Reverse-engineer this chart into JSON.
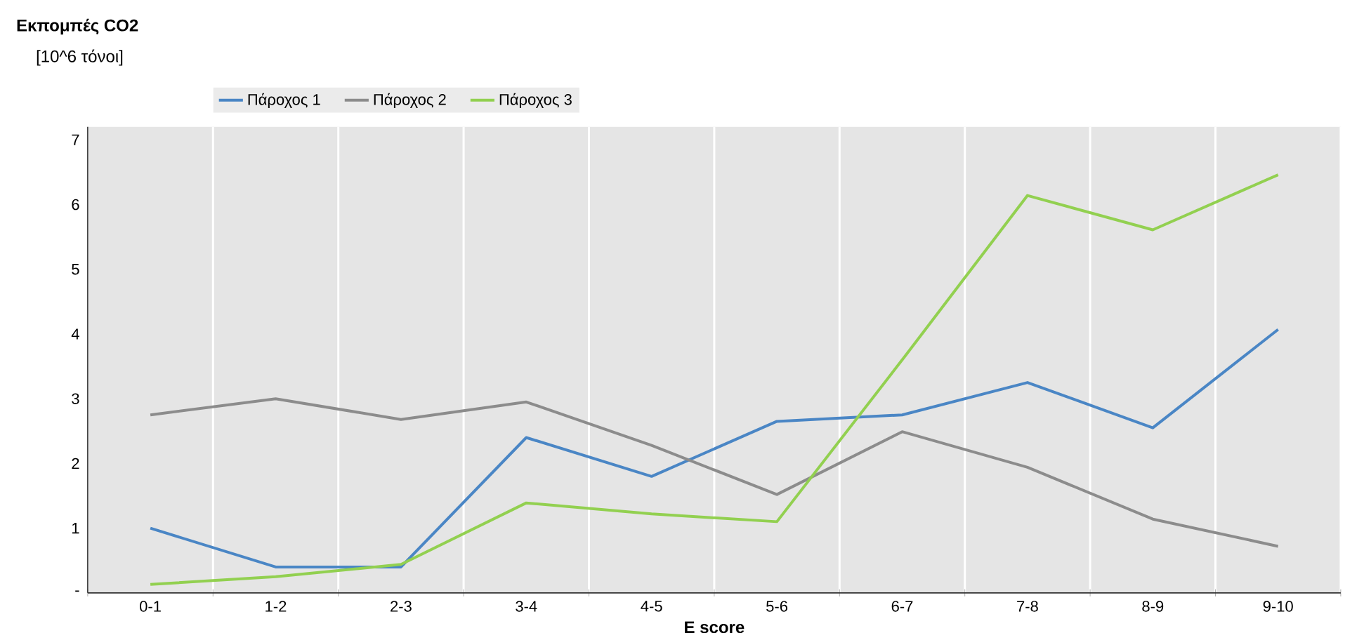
{
  "chart_data": {
    "type": "line",
    "title": "Εκπομπές CO2",
    "ylabel": "[10^6 τόνοι]",
    "xlabel": "E score",
    "categories": [
      "0-1",
      "1-2",
      "2-3",
      "3-4",
      "4-5",
      "5-6",
      "6-7",
      "7-8",
      "8-9",
      "9-10"
    ],
    "series": [
      {
        "name": "Πάροχος 1",
        "color": "#4a86c5",
        "values": [
          1.0,
          0.4,
          0.4,
          2.4,
          1.8,
          2.65,
          2.75,
          3.25,
          2.55,
          4.07
        ]
      },
      {
        "name": "Πάροχος 2",
        "color": "#8c8c8c",
        "values": [
          2.75,
          3.0,
          2.68,
          2.95,
          2.28,
          1.52,
          2.49,
          1.94,
          1.14,
          0.72
        ]
      },
      {
        "name": "Πάροχος 3",
        "color": "#92d050",
        "values": [
          0.13,
          0.25,
          0.44,
          1.39,
          1.22,
          1.1,
          3.6,
          6.14,
          5.61,
          6.46
        ]
      }
    ],
    "ylim": [
      0,
      7.2
    ],
    "yticks": [
      {
        "value": 0,
        "label": "-"
      },
      1,
      2,
      3,
      4,
      5,
      6,
      7
    ],
    "grid": "x",
    "legend": "top",
    "marker": "none",
    "line_style": "solid"
  }
}
